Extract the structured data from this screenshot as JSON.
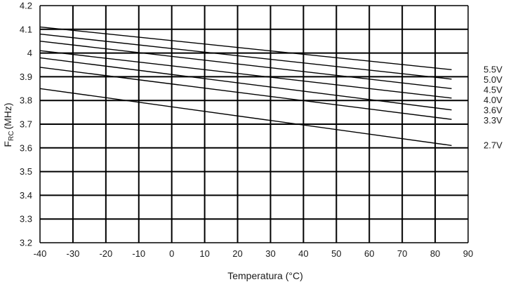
{
  "chart_data": {
    "type": "line",
    "xlabel": "Temperatura (°C)",
    "ylabel_main": "F",
    "ylabel_sub": "RC",
    "ylabel_unit": "(MHz)",
    "xlim": [
      -40,
      90
    ],
    "ylim": [
      3.2,
      4.2
    ],
    "x_ticks": [
      -40,
      -30,
      -20,
      -10,
      0,
      10,
      20,
      30,
      40,
      50,
      60,
      70,
      80,
      90
    ],
    "x_tick_labels": [
      "-40",
      "-30",
      "-20",
      "-10",
      "0",
      "10",
      "20",
      "30",
      "40",
      "50",
      "60",
      "70",
      "80",
      "90"
    ],
    "y_ticks": [
      3.2,
      3.3,
      3.4,
      3.5,
      3.6,
      3.7,
      3.8,
      3.9,
      4.0,
      4.1,
      4.2
    ],
    "y_tick_labels": [
      "3.2",
      "3.3",
      "3.4",
      "3.5",
      "3.6",
      "3.7",
      "3.8",
      "3.9",
      "4",
      "4.1",
      "4.2"
    ],
    "grid": true,
    "series_label_placement": "right",
    "series": [
      {
        "name": "5.5V",
        "x": [
          -40,
          85
        ],
        "values": [
          4.11,
          3.93
        ]
      },
      {
        "name": "5.0V",
        "x": [
          -40,
          85
        ],
        "values": [
          4.08,
          3.89
        ]
      },
      {
        "name": "4.5V",
        "x": [
          -40,
          85
        ],
        "values": [
          4.05,
          3.85
        ]
      },
      {
        "name": "4.0V",
        "x": [
          -40,
          85
        ],
        "values": [
          4.01,
          3.81
        ]
      },
      {
        "name": "3.6V",
        "x": [
          -40,
          85
        ],
        "values": [
          3.98,
          3.76
        ]
      },
      {
        "name": "3.3V",
        "x": [
          -40,
          85
        ],
        "values": [
          3.94,
          3.72
        ]
      },
      {
        "name": "2.7V",
        "x": [
          -40,
          85
        ],
        "values": [
          3.85,
          3.61
        ]
      }
    ],
    "colors": {
      "line": "#000000",
      "grid": "#000000",
      "text": "#1a1a1a"
    }
  }
}
